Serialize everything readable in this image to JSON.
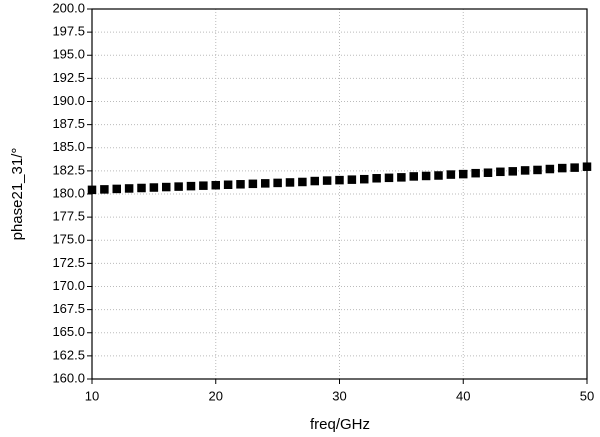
{
  "chart_data": {
    "type": "scatter",
    "x_label": "freq/GHz",
    "y_label": "phase21_31/°",
    "x": [
      10,
      11,
      12,
      13,
      14,
      15,
      16,
      17,
      18,
      19,
      20,
      21,
      22,
      23,
      24,
      25,
      26,
      27,
      28,
      29,
      30,
      31,
      32,
      33,
      34,
      35,
      36,
      37,
      38,
      39,
      40,
      41,
      42,
      43,
      44,
      45,
      46,
      47,
      48,
      49,
      50
    ],
    "series": [
      {
        "color": "#000000",
        "marker": "square",
        "values": [
          180.45,
          180.5,
          180.55,
          180.6,
          180.65,
          180.7,
          180.75,
          180.8,
          180.85,
          180.9,
          180.95,
          181.0,
          181.05,
          181.1,
          181.15,
          181.2,
          181.25,
          181.3,
          181.4,
          181.45,
          181.5,
          181.55,
          181.6,
          181.7,
          181.75,
          181.8,
          181.9,
          181.95,
          182.0,
          182.1,
          182.15,
          182.25,
          182.3,
          182.4,
          182.45,
          182.55,
          182.6,
          182.7,
          182.8,
          182.85,
          182.95
        ]
      }
    ],
    "xlim": [
      10,
      50
    ],
    "xticks": [
      10,
      20,
      30,
      40,
      50
    ],
    "ylim": [
      160,
      200
    ],
    "yticks": [
      {
        "value": 160,
        "label": "160.0"
      },
      {
        "value": 162.5,
        "label": "162.5"
      },
      {
        "value": 165,
        "label": "165.0"
      },
      {
        "value": 167.5,
        "label": "167.5"
      },
      {
        "value": 170,
        "label": "170.0"
      },
      {
        "value": 172.5,
        "label": "172.5"
      },
      {
        "value": 175,
        "label": "175.0"
      },
      {
        "value": 177.5,
        "label": "177.5"
      },
      {
        "value": 180,
        "label": "180.0"
      },
      {
        "value": 182.5,
        "label": "182.5"
      },
      {
        "value": 185,
        "label": "185.0"
      },
      {
        "value": 187.5,
        "label": "187.5"
      },
      {
        "value": 190,
        "label": "190.0"
      },
      {
        "value": 192.5,
        "label": "192.5"
      },
      {
        "value": 195,
        "label": "195.0"
      },
      {
        "value": 197.5,
        "label": "197.5"
      },
      {
        "value": 200,
        "label": "200.0"
      }
    ],
    "grid": true
  }
}
